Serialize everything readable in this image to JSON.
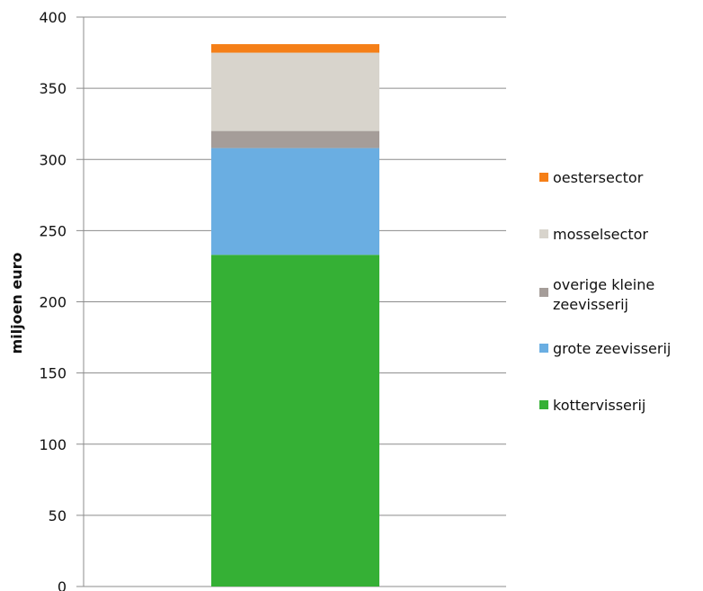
{
  "chart_data": {
    "type": "bar",
    "stacked": true,
    "title": "",
    "xlabel": "",
    "ylabel": "miljoen euro",
    "ylim": [
      0,
      400
    ],
    "yticks": [
      0,
      50,
      100,
      150,
      200,
      250,
      300,
      350,
      400
    ],
    "grid": true,
    "legend_position": "right",
    "categories": [
      ""
    ],
    "series": [
      {
        "name": "kottervisserij",
        "values": [
          233
        ],
        "color": "#35b035"
      },
      {
        "name": "grote zeevisserij",
        "values": [
          75
        ],
        "color": "#6aaee2"
      },
      {
        "name": "overige kleine zeevisserij",
        "values": [
          12
        ],
        "color": "#a59d99"
      },
      {
        "name": "mosselsector",
        "values": [
          55
        ],
        "color": "#d8d4cc"
      },
      {
        "name": "oestersector",
        "values": [
          6
        ],
        "color": "#f57f17"
      }
    ],
    "legend_order": [
      "oestersector",
      "mosselsector",
      "overige kleine zeevisserij",
      "grote zeevisserij",
      "kottervisserij"
    ]
  }
}
